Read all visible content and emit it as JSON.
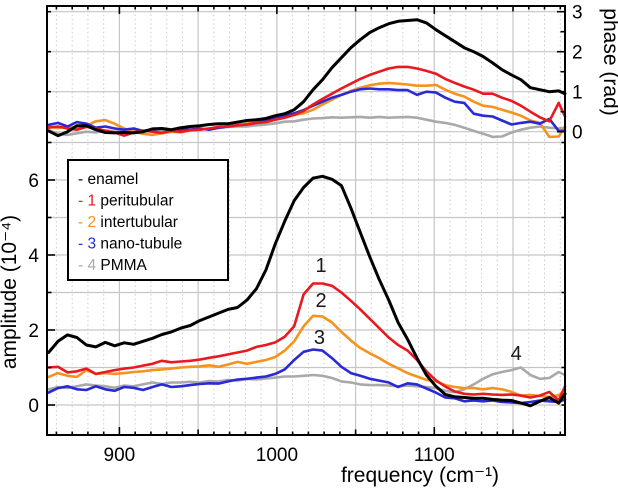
{
  "figure": {
    "background": "#ffffff"
  },
  "chart_data": {
    "type": "line",
    "description": "Dual-panel spectra: top panel phase (rad), bottom panel amplitude (10^-4) vs frequency (cm^-1), five curves",
    "x_axis": {
      "label": "frequency (cm⁻¹)",
      "range": [
        854,
        1183
      ],
      "major_ticks": [
        900,
        1000,
        1100
      ],
      "medium_ticks": [
        950,
        1050,
        1150
      ],
      "minor_tick_step": 10
    },
    "left_axis": {
      "label": "amplitude (10⁻⁴)",
      "major_ticks": [
        0,
        2,
        4,
        6
      ],
      "minor_ticks": [
        1,
        3,
        5,
        7
      ],
      "gridlines": [
        0,
        1,
        2,
        3,
        4,
        5,
        6,
        7
      ]
    },
    "right_axis": {
      "label": "phase (rad)",
      "major_ticks": [
        0,
        1,
        2,
        3
      ],
      "minor_ticks": [
        0.5,
        1.5,
        2.5
      ],
      "gridlines": [
        0,
        1,
        2,
        3
      ]
    },
    "legend": {
      "items": [
        {
          "dash": "-",
          "number": "",
          "label": "enamel",
          "color": "#000000"
        },
        {
          "dash": "-",
          "number": "1",
          "label": "peritubular",
          "color": "#e8191f"
        },
        {
          "dash": "-",
          "number": "2",
          "label": "intertubular",
          "color": "#f6921e"
        },
        {
          "dash": "-",
          "number": "3",
          "label": "nano-tubule",
          "color": "#2929d6"
        },
        {
          "dash": "-",
          "number": "4",
          "label": "PMMA",
          "color": "#a9a9a9"
        }
      ]
    },
    "annotations": [
      {
        "text": "1",
        "x": 1028,
        "amplitude": 3.73
      },
      {
        "text": "2",
        "x": 1028,
        "amplitude": 2.8
      },
      {
        "text": "3",
        "x": 1027,
        "amplitude": 1.81
      },
      {
        "text": "4",
        "x": 1152,
        "amplitude": 1.39
      }
    ],
    "x": [
      855,
      861,
      867,
      873,
      879,
      885,
      891,
      897,
      903,
      909,
      915,
      921,
      927,
      933,
      939,
      945,
      951,
      957,
      963,
      969,
      975,
      981,
      987,
      993,
      999,
      1005,
      1011,
      1017,
      1023,
      1029,
      1035,
      1041,
      1047,
      1053,
      1059,
      1065,
      1071,
      1077,
      1083,
      1089,
      1095,
      1101,
      1107,
      1113,
      1119,
      1125,
      1131,
      1137,
      1143,
      1149,
      1155,
      1161,
      1167,
      1173,
      1179,
      1183
    ],
    "series": [
      {
        "name": "pmma",
        "panel": "phase",
        "color": "#a9a9a9",
        "width": 2.6,
        "values": [
          0.04,
          -0.05,
          -0.08,
          -0.04,
          0.0,
          -0.02,
          0.04,
          0.0,
          0.02,
          0.02,
          0.0,
          0.04,
          0.04,
          0.02,
          0.04,
          0.08,
          0.05,
          0.08,
          0.09,
          0.12,
          0.13,
          0.13,
          0.16,
          0.18,
          0.21,
          0.25,
          0.26,
          0.3,
          0.33,
          0.34,
          0.36,
          0.35,
          0.36,
          0.37,
          0.35,
          0.37,
          0.35,
          0.36,
          0.37,
          0.35,
          0.3,
          0.25,
          0.22,
          0.17,
          0.1,
          0.02,
          -0.05,
          -0.13,
          -0.12,
          -0.02,
          0.05,
          0.1,
          0.13,
          0.1,
          0.08,
          0.1
        ]
      },
      {
        "name": "intertubular",
        "panel": "phase",
        "color": "#f6921e",
        "width": 2.6,
        "values": [
          0.13,
          0.09,
          0.13,
          0.1,
          0.15,
          0.26,
          0.29,
          0.2,
          0.08,
          0.0,
          -0.05,
          -0.08,
          -0.04,
          0.0,
          -0.02,
          0.03,
          0.05,
          0.08,
          0.11,
          0.13,
          0.16,
          0.2,
          0.24,
          0.28,
          0.33,
          0.38,
          0.42,
          0.46,
          0.55,
          0.68,
          0.8,
          0.92,
          1.02,
          1.1,
          1.16,
          1.2,
          1.22,
          1.2,
          1.18,
          1.15,
          1.15,
          1.17,
          1.05,
          0.95,
          0.88,
          0.75,
          0.65,
          0.62,
          0.55,
          0.48,
          0.4,
          0.28,
          0.22,
          -0.13,
          -0.12,
          0.13
        ]
      },
      {
        "name": "nano-tubule",
        "panel": "phase",
        "color": "#2929d6",
        "width": 2.6,
        "values": [
          0.17,
          0.22,
          0.13,
          0.24,
          0.2,
          0.1,
          0.13,
          0.08,
          0.05,
          0.08,
          0.02,
          0.05,
          0.08,
          0.02,
          0.05,
          0.05,
          0.08,
          0.05,
          0.1,
          0.13,
          0.16,
          0.18,
          0.22,
          0.27,
          0.33,
          0.4,
          0.46,
          0.54,
          0.65,
          0.75,
          0.85,
          0.92,
          1.0,
          1.06,
          1.08,
          1.06,
          1.06,
          1.04,
          1.04,
          0.92,
          1.0,
          0.98,
          0.85,
          0.75,
          0.72,
          0.45,
          0.4,
          0.38,
          0.28,
          0.18,
          0.22,
          0.25,
          0.2,
          0.32,
          0.02,
          0.02
        ]
      },
      {
        "name": "peritubular",
        "panel": "phase",
        "color": "#e8191f",
        "width": 2.6,
        "values": [
          0.1,
          0.13,
          0.08,
          0.05,
          0.12,
          0.08,
          0.02,
          -0.02,
          -0.1,
          -0.02,
          0.03,
          0.0,
          -0.03,
          0.02,
          0.0,
          0.04,
          0.05,
          0.08,
          0.12,
          0.13,
          0.16,
          0.18,
          0.22,
          0.24,
          0.3,
          0.35,
          0.42,
          0.52,
          0.68,
          0.82,
          0.95,
          1.08,
          1.2,
          1.32,
          1.42,
          1.5,
          1.58,
          1.62,
          1.62,
          1.58,
          1.52,
          1.45,
          1.32,
          1.22,
          1.13,
          1.05,
          0.95,
          0.95,
          0.85,
          0.77,
          0.65,
          0.5,
          0.36,
          0.26,
          0.72,
          0.38
        ]
      },
      {
        "name": "enamel",
        "panel": "phase",
        "color": "#000000",
        "width": 3,
        "values": [
          0.02,
          -0.1,
          0.0,
          0.15,
          0.15,
          0.05,
          -0.02,
          -0.03,
          -0.02,
          -0.03,
          0.0,
          0.07,
          0.08,
          0.05,
          0.1,
          0.13,
          0.15,
          0.18,
          0.2,
          0.2,
          0.24,
          0.28,
          0.3,
          0.33,
          0.4,
          0.45,
          0.55,
          0.75,
          1.05,
          1.3,
          1.6,
          1.85,
          2.1,
          2.3,
          2.48,
          2.6,
          2.7,
          2.76,
          2.78,
          2.8,
          2.72,
          2.55,
          2.4,
          2.25,
          2.1,
          2.0,
          1.88,
          1.72,
          1.55,
          1.42,
          1.3,
          1.1,
          1.05,
          1.0,
          1.02,
          0.95
        ]
      },
      {
        "name": "pmma",
        "panel": "amplitude",
        "color": "#a9a9a9",
        "width": 2.6,
        "values": [
          0.42,
          0.48,
          0.45,
          0.5,
          0.55,
          0.52,
          0.5,
          0.46,
          0.52,
          0.5,
          0.55,
          0.6,
          0.56,
          0.6,
          0.6,
          0.62,
          0.6,
          0.64,
          0.63,
          0.67,
          0.65,
          0.7,
          0.68,
          0.71,
          0.73,
          0.76,
          0.76,
          0.78,
          0.8,
          0.78,
          0.72,
          0.63,
          0.6,
          0.55,
          0.53,
          0.53,
          0.52,
          0.5,
          0.52,
          0.5,
          0.48,
          0.45,
          0.38,
          0.34,
          0.42,
          0.55,
          0.7,
          0.82,
          0.88,
          0.93,
          1.0,
          0.8,
          0.7,
          0.72,
          0.88,
          0.8
        ]
      },
      {
        "name": "intertubular",
        "panel": "amplitude",
        "color": "#f6921e",
        "width": 2.6,
        "values": [
          0.75,
          0.85,
          0.78,
          0.75,
          0.93,
          0.83,
          0.85,
          0.83,
          0.85,
          0.88,
          0.9,
          0.93,
          0.95,
          0.97,
          1.0,
          1.02,
          1.03,
          1.06,
          1.02,
          1.08,
          1.15,
          1.1,
          1.15,
          1.2,
          1.28,
          1.45,
          1.7,
          2.1,
          2.38,
          2.36,
          2.2,
          1.95,
          1.72,
          1.52,
          1.38,
          1.25,
          1.1,
          0.98,
          0.85,
          0.76,
          0.67,
          0.63,
          0.53,
          0.48,
          0.45,
          0.45,
          0.42,
          0.45,
          0.42,
          0.35,
          0.25,
          0.27,
          0.24,
          0.22,
          0.26,
          0.4
        ]
      },
      {
        "name": "nano-tubule",
        "panel": "amplitude",
        "color": "#2929d6",
        "width": 2.6,
        "values": [
          0.33,
          0.45,
          0.5,
          0.42,
          0.4,
          0.5,
          0.42,
          0.38,
          0.48,
          0.46,
          0.4,
          0.48,
          0.55,
          0.48,
          0.5,
          0.53,
          0.56,
          0.58,
          0.57,
          0.63,
          0.68,
          0.7,
          0.73,
          0.76,
          0.83,
          0.95,
          1.2,
          1.42,
          1.48,
          1.45,
          1.25,
          1.02,
          0.85,
          0.78,
          0.7,
          0.65,
          0.6,
          0.48,
          0.58,
          0.55,
          0.44,
          0.33,
          0.2,
          0.18,
          0.1,
          0.12,
          0.1,
          0.12,
          0.08,
          0.07,
          0.05,
          0.08,
          0.12,
          0.1,
          0.08,
          0.15
        ]
      },
      {
        "name": "peritubular",
        "panel": "amplitude",
        "color": "#e8191f",
        "width": 2.6,
        "values": [
          1.0,
          1.02,
          0.87,
          0.9,
          0.97,
          0.83,
          0.88,
          0.93,
          0.97,
          1.0,
          1.05,
          1.1,
          1.18,
          1.14,
          1.16,
          1.18,
          1.21,
          1.26,
          1.3,
          1.35,
          1.4,
          1.45,
          1.55,
          1.6,
          1.67,
          1.82,
          2.1,
          2.95,
          3.24,
          3.24,
          3.18,
          3.0,
          2.78,
          2.55,
          2.3,
          2.05,
          1.8,
          1.6,
          1.45,
          1.2,
          0.9,
          0.66,
          0.49,
          0.36,
          0.3,
          0.28,
          0.3,
          0.28,
          0.27,
          0.28,
          0.25,
          0.2,
          0.25,
          0.35,
          0.12,
          0.5
        ]
      },
      {
        "name": "enamel",
        "panel": "amplitude",
        "color": "#000000",
        "width": 3,
        "values": [
          1.4,
          1.7,
          1.87,
          1.8,
          1.6,
          1.55,
          1.67,
          1.58,
          1.66,
          1.62,
          1.7,
          1.78,
          1.88,
          1.95,
          2.05,
          2.12,
          2.25,
          2.35,
          2.45,
          2.55,
          2.6,
          2.8,
          3.1,
          3.6,
          4.3,
          4.9,
          5.45,
          5.8,
          6.05,
          6.1,
          6.02,
          5.85,
          5.25,
          4.6,
          3.95,
          3.35,
          2.8,
          2.2,
          1.75,
          1.25,
          0.8,
          0.5,
          0.28,
          0.22,
          0.2,
          0.18,
          0.18,
          0.15,
          0.13,
          0.12,
          0.05,
          -0.02,
          0.1,
          0.2,
          0.05,
          0.3
        ]
      }
    ]
  }
}
